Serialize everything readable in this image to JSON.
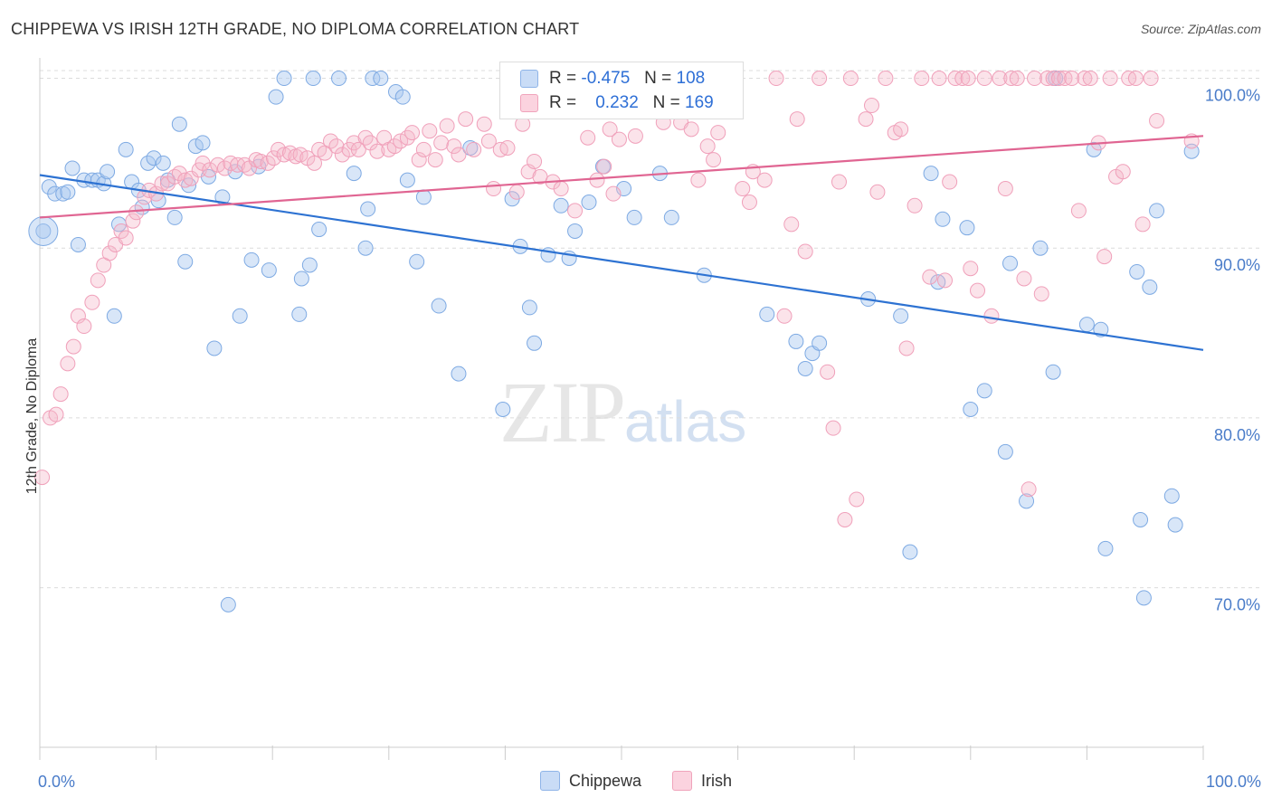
{
  "header": {
    "title": "CHIPPEWA VS IRISH 12TH GRADE, NO DIPLOMA CORRELATION CHART",
    "source": "Source: ZipAtlas.com"
  },
  "legend": {
    "rows": [
      {
        "r_label": "R =",
        "r_value": "-0.475",
        "n_label": "N =",
        "n_value": "108",
        "color": "#a9c8f0"
      },
      {
        "r_label": "R =",
        "r_value": "0.232",
        "n_label": "N =",
        "n_value": "169",
        "color": "#f5b9cb"
      }
    ]
  },
  "watermark": {
    "zip": "ZIP",
    "atlas": "atlas"
  },
  "chart_data": {
    "type": "scatter",
    "ylabel": "12th Grade, No Diploma",
    "x_ticks": [
      "0.0%",
      "100.0%"
    ],
    "y_ticks": [
      "100.0%",
      "90.0%",
      "80.0%",
      "70.0%"
    ],
    "xlim": [
      0,
      100
    ],
    "ylim": [
      60.6,
      101.2
    ],
    "grid": true,
    "legend_position": "bottom-center",
    "colors": {
      "chippewa": "#5b93e0",
      "irish": "#ee8fad",
      "chippewa_line": "#2d72d2",
      "irish_line": "#e06592"
    },
    "series": [
      {
        "name": "Chippewa",
        "trend": [
          [
            0,
            94.3
          ],
          [
            100,
            84.0
          ]
        ],
        "points": [
          [
            0.3,
            91.0
          ],
          [
            0.8,
            93.6
          ],
          [
            1.3,
            93.2
          ],
          [
            2.0,
            93.2
          ],
          [
            2.4,
            93.3
          ],
          [
            2.8,
            94.7
          ],
          [
            3.3,
            90.2
          ],
          [
            3.8,
            94.0
          ],
          [
            4.5,
            94.0
          ],
          [
            5.0,
            94.0
          ],
          [
            5.5,
            93.8
          ],
          [
            5.8,
            94.5
          ],
          [
            6.4,
            86.0
          ],
          [
            6.8,
            91.4
          ],
          [
            7.4,
            95.8
          ],
          [
            7.9,
            93.9
          ],
          [
            8.5,
            93.4
          ],
          [
            8.8,
            92.4
          ],
          [
            9.3,
            95.0
          ],
          [
            9.8,
            95.3
          ],
          [
            10.2,
            92.8
          ],
          [
            10.6,
            95.0
          ],
          [
            11.0,
            94.0
          ],
          [
            11.6,
            91.8
          ],
          [
            12.0,
            97.3
          ],
          [
            12.5,
            89.2
          ],
          [
            12.8,
            93.7
          ],
          [
            13.4,
            96.0
          ],
          [
            14.0,
            96.2
          ],
          [
            14.5,
            94.2
          ],
          [
            15.0,
            84.1
          ],
          [
            15.7,
            93.0
          ],
          [
            16.2,
            69.0
          ],
          [
            16.8,
            94.5
          ],
          [
            17.2,
            86.0
          ],
          [
            18.2,
            89.3
          ],
          [
            18.8,
            94.8
          ],
          [
            19.7,
            88.7
          ],
          [
            20.3,
            98.9
          ],
          [
            21.0,
            100.0
          ],
          [
            22.3,
            86.1
          ],
          [
            22.5,
            88.2
          ],
          [
            23.2,
            89.0
          ],
          [
            23.5,
            100.0
          ],
          [
            24.0,
            91.1
          ],
          [
            25.7,
            100.0
          ],
          [
            27.0,
            94.4
          ],
          [
            28.0,
            90.0
          ],
          [
            28.2,
            92.3
          ],
          [
            28.6,
            100.0
          ],
          [
            29.3,
            100.0
          ],
          [
            30.6,
            99.2
          ],
          [
            31.2,
            98.9
          ],
          [
            31.6,
            94.0
          ],
          [
            32.4,
            89.2
          ],
          [
            33.0,
            93.0
          ],
          [
            34.3,
            86.6
          ],
          [
            36.0,
            82.6
          ],
          [
            37.0,
            95.9
          ],
          [
            39.8,
            80.5
          ],
          [
            40.6,
            92.9
          ],
          [
            41.3,
            90.1
          ],
          [
            42.1,
            86.5
          ],
          [
            42.5,
            84.4
          ],
          [
            43.7,
            89.6
          ],
          [
            44.8,
            92.5
          ],
          [
            45.5,
            89.4
          ],
          [
            46.0,
            91.0
          ],
          [
            47.2,
            92.7
          ],
          [
            48.4,
            94.8
          ],
          [
            50.2,
            93.5
          ],
          [
            51.1,
            91.8
          ],
          [
            53.3,
            94.4
          ],
          [
            54.3,
            91.8
          ],
          [
            57.1,
            88.4
          ],
          [
            62.5,
            86.1
          ],
          [
            65.0,
            84.5
          ],
          [
            65.8,
            82.9
          ],
          [
            66.4,
            83.8
          ],
          [
            67.0,
            84.4
          ],
          [
            71.2,
            87.0
          ],
          [
            74.0,
            86.0
          ],
          [
            74.8,
            72.1
          ],
          [
            76.6,
            94.4
          ],
          [
            77.2,
            88.0
          ],
          [
            77.6,
            91.7
          ],
          [
            79.7,
            91.2
          ],
          [
            80.0,
            80.5
          ],
          [
            81.2,
            81.6
          ],
          [
            83.0,
            78.0
          ],
          [
            83.4,
            89.1
          ],
          [
            84.8,
            75.1
          ],
          [
            86.0,
            90.0
          ],
          [
            87.1,
            82.7
          ],
          [
            87.3,
            100.0
          ],
          [
            90.0,
            85.5
          ],
          [
            90.6,
            95.8
          ],
          [
            91.2,
            85.2
          ],
          [
            91.6,
            72.3
          ],
          [
            94.3,
            88.6
          ],
          [
            94.6,
            74.0
          ],
          [
            94.9,
            69.4
          ],
          [
            95.4,
            87.7
          ],
          [
            96.0,
            92.2
          ],
          [
            97.3,
            75.4
          ],
          [
            97.6,
            73.7
          ],
          [
            99.0,
            95.7
          ]
        ]
      },
      {
        "name": "Irish",
        "trend": [
          [
            0,
            91.8
          ],
          [
            100,
            96.6
          ]
        ],
        "points": [
          [
            0.2,
            76.5
          ],
          [
            0.9,
            80.0
          ],
          [
            1.4,
            80.2
          ],
          [
            1.8,
            81.4
          ],
          [
            2.4,
            83.2
          ],
          [
            2.9,
            84.2
          ],
          [
            3.3,
            86.0
          ],
          [
            3.8,
            85.4
          ],
          [
            4.5,
            86.8
          ],
          [
            5.0,
            88.1
          ],
          [
            5.5,
            89.0
          ],
          [
            6.0,
            89.7
          ],
          [
            6.5,
            90.2
          ],
          [
            7.0,
            91.0
          ],
          [
            7.4,
            90.6
          ],
          [
            8.0,
            91.6
          ],
          [
            8.3,
            92.1
          ],
          [
            9.0,
            93.0
          ],
          [
            9.4,
            93.4
          ],
          [
            10.0,
            93.2
          ],
          [
            10.5,
            93.8
          ],
          [
            11.0,
            93.8
          ],
          [
            11.6,
            94.2
          ],
          [
            12.0,
            94.4
          ],
          [
            12.5,
            94.0
          ],
          [
            13.0,
            94.1
          ],
          [
            13.7,
            94.6
          ],
          [
            14.0,
            95.0
          ],
          [
            14.6,
            94.6
          ],
          [
            15.3,
            94.9
          ],
          [
            15.9,
            94.7
          ],
          [
            16.4,
            95.0
          ],
          [
            17.0,
            94.9
          ],
          [
            17.6,
            94.9
          ],
          [
            18.0,
            94.7
          ],
          [
            18.6,
            95.2
          ],
          [
            19.0,
            95.1
          ],
          [
            19.6,
            95.0
          ],
          [
            20.1,
            95.3
          ],
          [
            20.5,
            95.8
          ],
          [
            21.0,
            95.5
          ],
          [
            21.5,
            95.6
          ],
          [
            22.0,
            95.4
          ],
          [
            22.4,
            95.5
          ],
          [
            23.0,
            95.3
          ],
          [
            23.6,
            95.0
          ],
          [
            24.0,
            95.8
          ],
          [
            24.5,
            95.6
          ],
          [
            25.0,
            96.3
          ],
          [
            25.5,
            96.0
          ],
          [
            26.0,
            95.5
          ],
          [
            26.6,
            95.8
          ],
          [
            27.0,
            96.2
          ],
          [
            27.4,
            95.8
          ],
          [
            28.0,
            96.5
          ],
          [
            28.4,
            96.2
          ],
          [
            29.0,
            95.7
          ],
          [
            29.6,
            96.5
          ],
          [
            30.0,
            95.8
          ],
          [
            30.5,
            96.0
          ],
          [
            31.0,
            96.3
          ],
          [
            31.6,
            96.5
          ],
          [
            32.0,
            96.8
          ],
          [
            32.6,
            95.2
          ],
          [
            33.0,
            95.8
          ],
          [
            33.5,
            96.9
          ],
          [
            34.0,
            95.2
          ],
          [
            34.5,
            96.2
          ],
          [
            35.0,
            97.2
          ],
          [
            35.6,
            96.0
          ],
          [
            36.0,
            95.5
          ],
          [
            36.6,
            97.6
          ],
          [
            37.3,
            95.8
          ],
          [
            38.2,
            97.3
          ],
          [
            38.6,
            96.3
          ],
          [
            39.0,
            93.5
          ],
          [
            39.6,
            95.8
          ],
          [
            40.2,
            95.9
          ],
          [
            41.0,
            93.3
          ],
          [
            41.5,
            97.3
          ],
          [
            42.0,
            94.5
          ],
          [
            42.5,
            95.1
          ],
          [
            43.0,
            94.2
          ],
          [
            44.1,
            93.9
          ],
          [
            44.8,
            93.5
          ],
          [
            46.0,
            92.2
          ],
          [
            47.1,
            96.5
          ],
          [
            47.9,
            94.0
          ],
          [
            48.5,
            94.8
          ],
          [
            49.0,
            97.0
          ],
          [
            49.3,
            93.2
          ],
          [
            49.8,
            96.4
          ],
          [
            50.5,
            99.2
          ],
          [
            51.2,
            96.6
          ],
          [
            51.9,
            100.0
          ],
          [
            52.4,
            100.0
          ],
          [
            53.2,
            100.0
          ],
          [
            53.6,
            97.4
          ],
          [
            54.3,
            100.0
          ],
          [
            55.1,
            97.4
          ],
          [
            56.0,
            97.0
          ],
          [
            56.6,
            94.0
          ],
          [
            57.4,
            96.0
          ],
          [
            57.9,
            95.2
          ],
          [
            58.3,
            96.8
          ],
          [
            58.8,
            100.0
          ],
          [
            59.6,
            100.0
          ],
          [
            60.4,
            93.5
          ],
          [
            61.0,
            92.7
          ],
          [
            61.3,
            94.5
          ],
          [
            62.3,
            94.0
          ],
          [
            63.3,
            100.0
          ],
          [
            64.0,
            86.0
          ],
          [
            64.6,
            91.4
          ],
          [
            65.1,
            97.6
          ],
          [
            65.8,
            89.8
          ],
          [
            67.0,
            100.0
          ],
          [
            67.7,
            82.7
          ],
          [
            68.2,
            79.4
          ],
          [
            68.7,
            93.9
          ],
          [
            69.2,
            74.0
          ],
          [
            69.7,
            100.0
          ],
          [
            70.2,
            75.2
          ],
          [
            71.0,
            97.6
          ],
          [
            71.5,
            98.4
          ],
          [
            72.0,
            93.3
          ],
          [
            72.7,
            100.0
          ],
          [
            73.5,
            96.8
          ],
          [
            74.0,
            97.0
          ],
          [
            74.5,
            84.1
          ],
          [
            75.2,
            92.5
          ],
          [
            75.8,
            100.0
          ],
          [
            76.5,
            88.3
          ],
          [
            77.3,
            100.0
          ],
          [
            77.8,
            88.1
          ],
          [
            78.2,
            93.9
          ],
          [
            78.7,
            100.0
          ],
          [
            79.3,
            100.0
          ],
          [
            79.8,
            100.0
          ],
          [
            80.0,
            88.8
          ],
          [
            80.6,
            87.5
          ],
          [
            81.2,
            100.0
          ],
          [
            81.8,
            86.0
          ],
          [
            82.5,
            100.0
          ],
          [
            83.0,
            93.5
          ],
          [
            83.5,
            100.0
          ],
          [
            84.0,
            100.0
          ],
          [
            84.6,
            88.2
          ],
          [
            85.0,
            75.8
          ],
          [
            85.5,
            100.0
          ],
          [
            86.1,
            87.3
          ],
          [
            86.6,
            100.0
          ],
          [
            87.1,
            100.0
          ],
          [
            87.6,
            100.0
          ],
          [
            88.1,
            100.0
          ],
          [
            88.7,
            100.0
          ],
          [
            89.3,
            92.2
          ],
          [
            89.8,
            100.0
          ],
          [
            90.3,
            100.0
          ],
          [
            91.0,
            96.2
          ],
          [
            91.5,
            89.5
          ],
          [
            92.0,
            100.0
          ],
          [
            92.5,
            94.2
          ],
          [
            93.1,
            94.5
          ],
          [
            93.6,
            100.0
          ],
          [
            94.2,
            100.0
          ],
          [
            94.8,
            91.4
          ],
          [
            95.5,
            100.0
          ],
          [
            96.0,
            97.5
          ],
          [
            99.0,
            96.3
          ]
        ]
      }
    ]
  }
}
